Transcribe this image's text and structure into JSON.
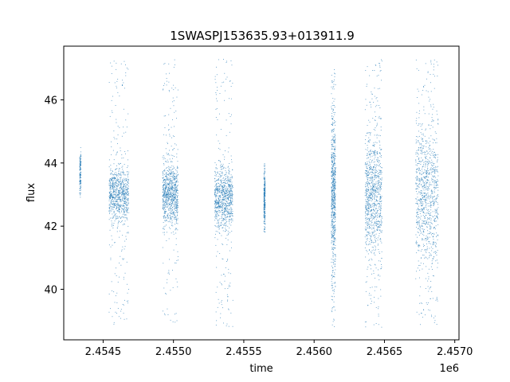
{
  "chart_data": {
    "type": "scatter",
    "title": "1SWASPJ153635.93+013911.9",
    "xlabel": "time",
    "ylabel": "flux",
    "x_offset_label": "1e6",
    "xlim": [
      2.45422,
      2.45703
    ],
    "ylim": [
      38.4,
      47.7
    ],
    "x_ticks": [
      2.4545,
      2.455,
      2.4555,
      2.456,
      2.4565,
      2.457
    ],
    "x_tick_labels": [
      "2.4545",
      "2.4550",
      "2.4555",
      "2.4560",
      "2.4565",
      "2.4570"
    ],
    "y_ticks": [
      40,
      42,
      44,
      46
    ],
    "y_tick_labels": [
      "40",
      "42",
      "44",
      "46"
    ],
    "grid": false,
    "marker_color": "#1f77b4",
    "series": [
      {
        "segments": [
          {
            "x_start": 2.45433,
            "x_end": 2.45434,
            "flux_center": 43.7,
            "flux_sd": 0.4,
            "flux_min": 42.9,
            "flux_max": 44.6,
            "density": 0.15
          },
          {
            "x_start": 2.45454,
            "x_end": 2.45468,
            "flux_center": 43.0,
            "flux_sd": 0.45,
            "flux_min": 38.9,
            "flux_max": 47.3,
            "density": 1.0
          },
          {
            "x_start": 2.45492,
            "x_end": 2.45503,
            "flux_center": 43.0,
            "flux_sd": 0.5,
            "flux_min": 38.9,
            "flux_max": 47.3,
            "density": 1.0
          },
          {
            "x_start": 2.45529,
            "x_end": 2.45542,
            "flux_center": 42.9,
            "flux_sd": 0.5,
            "flux_min": 38.8,
            "flux_max": 47.3,
            "density": 1.0
          },
          {
            "x_start": 2.45564,
            "x_end": 2.45565,
            "flux_center": 42.8,
            "flux_sd": 0.45,
            "flux_min": 41.8,
            "flux_max": 44.0,
            "density": 0.3
          },
          {
            "x_start": 2.45612,
            "x_end": 2.45615,
            "flux_center": 43.0,
            "flux_sd": 1.2,
            "flux_min": 38.8,
            "flux_max": 47.3,
            "density": 0.8
          },
          {
            "x_start": 2.45636,
            "x_end": 2.45648,
            "flux_center": 43.0,
            "flux_sd": 0.9,
            "flux_min": 38.8,
            "flux_max": 47.3,
            "density": 1.1
          },
          {
            "x_start": 2.45672,
            "x_end": 2.45688,
            "flux_center": 43.0,
            "flux_sd": 1.2,
            "flux_min": 38.8,
            "flux_max": 47.3,
            "density": 1.1
          }
        ]
      }
    ]
  }
}
